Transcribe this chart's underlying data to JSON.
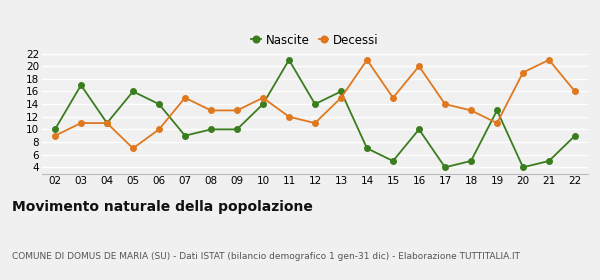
{
  "years": [
    2,
    3,
    4,
    5,
    6,
    7,
    8,
    9,
    10,
    11,
    12,
    13,
    14,
    15,
    16,
    17,
    18,
    19,
    20,
    21,
    22
  ],
  "nascite": [
    10,
    17,
    11,
    16,
    14,
    9,
    10,
    10,
    14,
    21,
    14,
    16,
    7,
    5,
    10,
    4,
    5,
    13,
    4,
    5,
    9
  ],
  "decessi": [
    9,
    11,
    11,
    7,
    10,
    15,
    13,
    13,
    15,
    12,
    11,
    15,
    21,
    15,
    20,
    14,
    13,
    11,
    19,
    21,
    16
  ],
  "nascite_color": "#3a7d1e",
  "decessi_color": "#e07820",
  "background_color": "#f0f0f0",
  "title": "Movimento naturale della popolazione",
  "subtitle": "COMUNE DI DOMUS DE MARIA (SU) - Dati ISTAT (bilancio demografico 1 gen-31 dic) - Elaborazione TUTTITALIA.IT",
  "legend_nascite": "Nascite",
  "legend_decessi": "Decessi",
  "ylim": [
    3,
    22.5
  ],
  "yticks": [
    4,
    6,
    8,
    10,
    12,
    14,
    16,
    18,
    20,
    22
  ],
  "title_fontsize": 10,
  "subtitle_fontsize": 6.5,
  "axis_fontsize": 7.5,
  "legend_fontsize": 8.5,
  "marker_size": 4,
  "line_width": 1.3
}
